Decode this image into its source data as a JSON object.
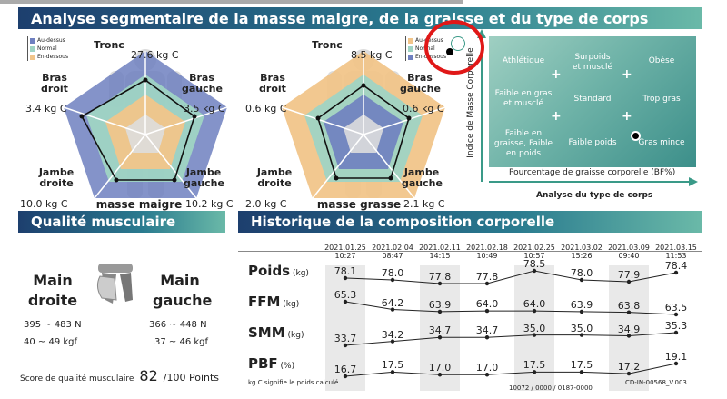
{
  "header": {
    "title": "Analyse segmentaire de la masse maigre, de la graisse et du type de corps"
  },
  "legend": {
    "above": "Au-dessus",
    "normal": "Normal",
    "below": "En-dessous"
  },
  "lean": {
    "trunk_label": "Tronc",
    "trunk_value": "27.6  kg C",
    "right_arm_label": "Bras\ndroit",
    "right_arm_value": "3.4  kg C",
    "left_arm_label": "Bras\ngauche",
    "left_arm_value": "3.5  kg C",
    "right_leg_label": "Jambe\ndroite",
    "right_leg_value": "10.0  kg C",
    "left_leg_label": "Jambe\ngauche",
    "left_leg_value": "10.2  kg C",
    "title": "masse maigre"
  },
  "fat": {
    "trunk_label": "Tronc",
    "trunk_value": "8.5 kg C",
    "right_arm_label": "Bras\ndroit",
    "right_arm_value": "0.6  kg C",
    "left_arm_label": "Bras\ngauche",
    "left_arm_value": "0.6  kg C",
    "right_leg_label": "Jambe\ndroite",
    "right_leg_value": "2.0  kg C",
    "left_leg_label": "Jambe\ngauche",
    "left_leg_value": "2.1  kg C",
    "title": "masse grasse"
  },
  "body_type": {
    "y_axis": "Indice de Masse Corporelle",
    "x_axis": "Pourcentage de graisse corporelle (BF%)",
    "caption": "Analyse du type de corps",
    "cells": [
      "Athlétique",
      "Surpoids\net musclé",
      "Obèse",
      "Faible en gras\net musclé",
      "Standard",
      "Trop gras",
      "Faible en\ngraisse, Faible\nen poids",
      "Faible poids",
      "Gras mince"
    ]
  },
  "muscle_quality": {
    "title": "Qualité musculaire",
    "right_label": "Main\ndroite",
    "left_label": "Main\ngauche",
    "right_n": "395 ~ 483 N",
    "right_kgf": "40 ~ 49 kgf",
    "left_n": "366 ~ 448 N",
    "left_kgf": "37 ~ 46 kgf",
    "score_label": "Score de qualité musculaire",
    "score": "82",
    "score_suffix": "/100 Points"
  },
  "history": {
    "title": "Historique de la composition corporelle",
    "dates": [
      [
        "2021.01.25",
        "10:27"
      ],
      [
        "2021.02.04",
        "08:47"
      ],
      [
        "2021.02.11",
        "14:15"
      ],
      [
        "2021.02.18",
        "10:49"
      ],
      [
        "2021.02.25",
        "10:57"
      ],
      [
        "2021.03.02",
        "15:26"
      ],
      [
        "2021.03.09",
        "09:40"
      ],
      [
        "2021.03.15",
        "11:53"
      ]
    ],
    "rows": [
      {
        "label": "Poids",
        "unit": "(kg)",
        "values": [
          "78.1",
          "78.0",
          "77.8",
          "77.8",
          "78.5",
          "78.0",
          "77.9",
          "78.4"
        ]
      },
      {
        "label": "FFM",
        "unit": "(kg)",
        "values": [
          "65.3",
          "64.2",
          "63.9",
          "64.0",
          "64.0",
          "63.9",
          "63.8",
          "63.5"
        ]
      },
      {
        "label": "SMM",
        "unit": "(kg)",
        "values": [
          "33.7",
          "34.2",
          "34.7",
          "34.7",
          "35.0",
          "35.0",
          "34.9",
          "35.3"
        ]
      },
      {
        "label": "PBF",
        "unit": "(%)",
        "values": [
          "16.7",
          "17.5",
          "17.0",
          "17.0",
          "17.5",
          "17.5",
          "17.2",
          "19.1"
        ]
      }
    ],
    "footnote": "kg C signifie le poids calculé",
    "code1": "10072 / 0000 / 0187-0000",
    "code2": "CD-IN-00568_V.003"
  }
}
